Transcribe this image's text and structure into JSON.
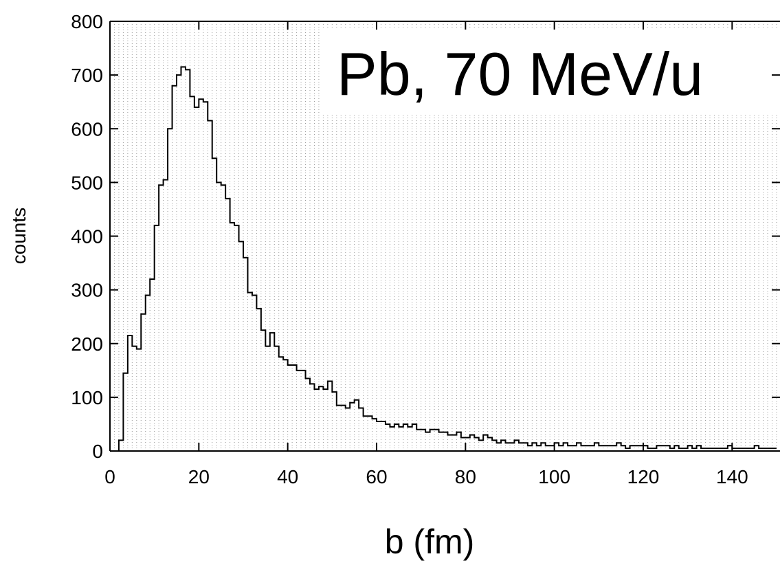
{
  "chart_data": {
    "type": "bar",
    "histogram": true,
    "xlabel": "b (fm)",
    "ylabel": "counts",
    "xlim": [
      0,
      150
    ],
    "ylim": [
      0,
      800
    ],
    "x_ticks": [
      0,
      20,
      40,
      60,
      80,
      100,
      120,
      140
    ],
    "y_ticks": [
      0,
      100,
      200,
      300,
      400,
      500,
      600,
      700,
      800
    ],
    "x_tick_labels": [
      "0",
      "20",
      "40",
      "60",
      "80",
      "100",
      "120",
      "140"
    ],
    "y_tick_labels": [
      "0",
      "100",
      "200",
      "300",
      "400",
      "500",
      "600",
      "700",
      "800"
    ],
    "grid": "vertical dotted lines every 1 fm",
    "bin_width": 1,
    "bin_edges_start": 0,
    "values": [
      0,
      0,
      20,
      145,
      215,
      195,
      190,
      255,
      290,
      320,
      420,
      495,
      505,
      600,
      680,
      700,
      715,
      710,
      660,
      640,
      655,
      650,
      615,
      545,
      500,
      495,
      470,
      425,
      420,
      390,
      360,
      295,
      290,
      265,
      225,
      195,
      220,
      195,
      175,
      170,
      160,
      160,
      150,
      150,
      135,
      125,
      115,
      120,
      115,
      130,
      110,
      85,
      85,
      80,
      90,
      95,
      80,
      65,
      65,
      60,
      55,
      55,
      50,
      45,
      50,
      45,
      50,
      45,
      50,
      40,
      40,
      35,
      40,
      40,
      35,
      35,
      30,
      30,
      35,
      25,
      25,
      30,
      25,
      20,
      30,
      25,
      20,
      15,
      20,
      15,
      15,
      20,
      15,
      15,
      10,
      15,
      10,
      15,
      10,
      10,
      15,
      10,
      15,
      10,
      10,
      15,
      10,
      10,
      10,
      15,
      10,
      10,
      10,
      10,
      15,
      10,
      5,
      10,
      10,
      10,
      10,
      5,
      5,
      10,
      10,
      10,
      5,
      10,
      5,
      5,
      10,
      5,
      10,
      5,
      5,
      5,
      5,
      5,
      5,
      10,
      5,
      5,
      5,
      5,
      5,
      10,
      5,
      5,
      5,
      5
    ],
    "annotations": [
      "Pb, 70 MeV/u"
    ],
    "line_color": "#000000",
    "grid_color": "#999999",
    "background_color": "#ffffff"
  }
}
